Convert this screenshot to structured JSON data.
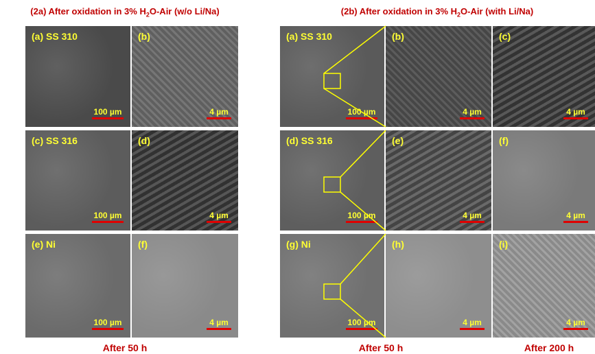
{
  "left_panel": {
    "title": [
      "(2a) After oxidation in 3% H",
      "2",
      "O-Air (w/o Li/Na)"
    ],
    "images": [
      [
        {
          "label": "(a) SS 310",
          "scale": "100 µm"
        },
        {
          "label": "(b)",
          "scale": "4 µm"
        }
      ],
      [
        {
          "label": "(c) SS 316",
          "scale": "100 µm"
        },
        {
          "label": "(d)",
          "scale": "4 µm"
        }
      ],
      [
        {
          "label": "(e) Ni",
          "scale": "100 µm"
        },
        {
          "label": "(f)",
          "scale": "4 µm"
        }
      ]
    ],
    "captions": [
      "After 50 h"
    ]
  },
  "right_panel": {
    "title": [
      "(2b) After oxidation in 3% H",
      "2",
      "O-Air (with Li/Na)"
    ],
    "images": [
      [
        {
          "label": "(a) SS 310",
          "scale": "100 µm"
        },
        {
          "label": "(b)",
          "scale": "4 µm"
        },
        {
          "label": "(c)",
          "scale": "4 µm"
        }
      ],
      [
        {
          "label": "(d) SS 316",
          "scale": "100 µm"
        },
        {
          "label": "(e)",
          "scale": "4 µm"
        },
        {
          "label": "(f)",
          "scale": "4 µm"
        }
      ],
      [
        {
          "label": "(g) Ni",
          "scale": "100 µm"
        },
        {
          "label": "(h)",
          "scale": "4 µm"
        },
        {
          "label": "(i)",
          "scale": "4 µm"
        }
      ]
    ],
    "captions": [
      "After 50 h",
      "After 200 h"
    ]
  }
}
